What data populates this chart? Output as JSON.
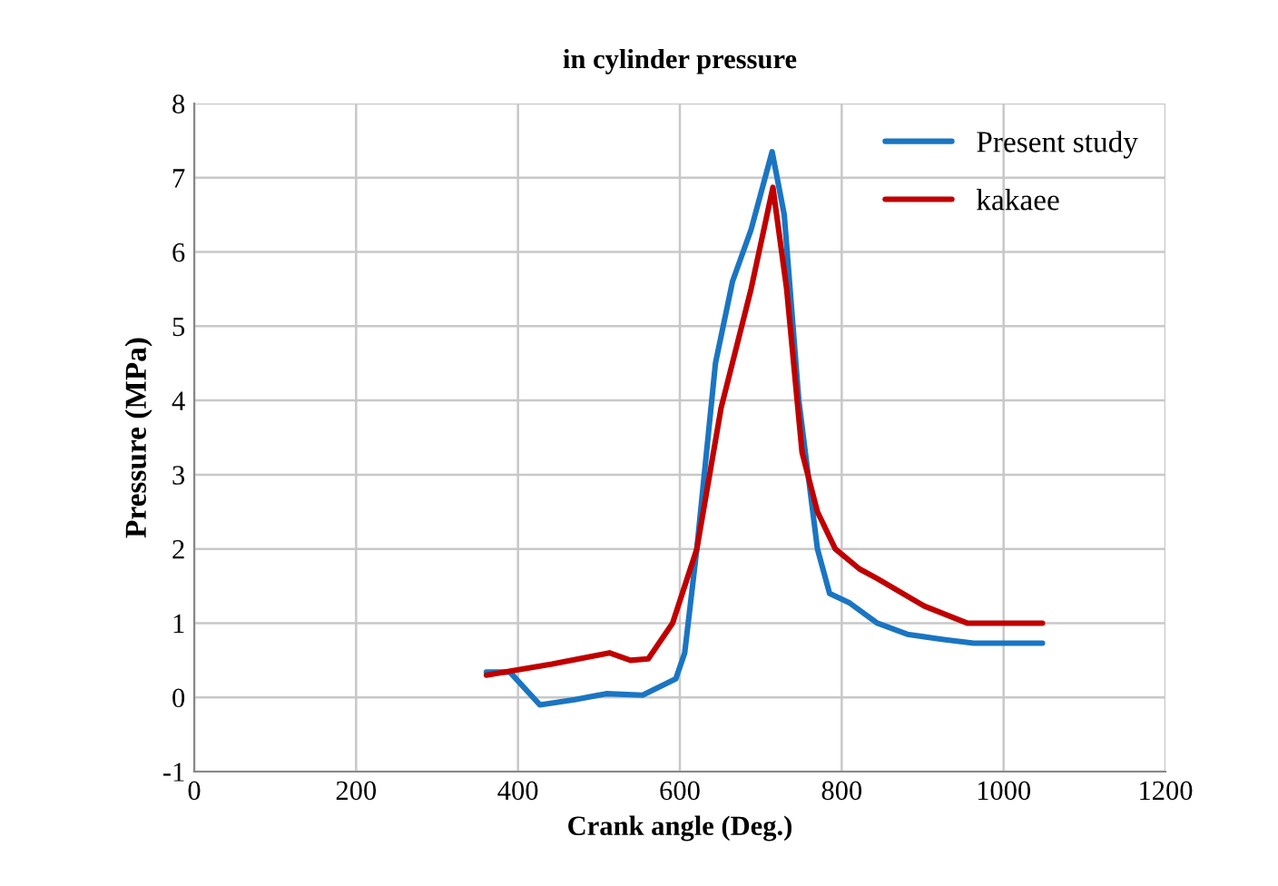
{
  "chart_data": {
    "type": "line",
    "title": "in cylinder pressure",
    "xlabel": "Crank angle (Deg.)",
    "ylabel": "Pressure (MPa)",
    "xlim": [
      0,
      1200
    ],
    "xticks": [
      0,
      200,
      400,
      600,
      800,
      1000,
      1200
    ],
    "ylim": [
      -1,
      8
    ],
    "yticks": [
      -1,
      0,
      1,
      2,
      3,
      4,
      5,
      6,
      7,
      8
    ],
    "grid": true,
    "legend": "top right",
    "marker": "none",
    "line_style": "solid",
    "series": [
      {
        "name": "Present study",
        "color": "#1a75c2",
        "x": [
          361,
          390,
          427,
          470,
          509,
          554,
          595,
          606,
          621,
          644,
          665,
          688,
          714,
          729,
          747,
          770,
          785,
          810,
          844,
          881,
          926,
          963,
          1048
        ],
        "values": [
          0.34,
          0.34,
          -0.1,
          -0.03,
          0.05,
          0.03,
          0.25,
          0.6,
          2.0,
          4.5,
          5.6,
          6.3,
          7.35,
          6.5,
          4.0,
          2.0,
          1.4,
          1.27,
          1.0,
          0.85,
          0.78,
          0.73,
          0.73
        ]
      },
      {
        "name": "kakaee",
        "color": "#c00000",
        "x": [
          361,
          442,
          513,
          539,
          561,
          591,
          621,
          651,
          688,
          715,
          732,
          751,
          770,
          792,
          822,
          844,
          902,
          955,
          1048
        ],
        "values": [
          0.3,
          0.45,
          0.6,
          0.5,
          0.52,
          1.0,
          2.0,
          3.9,
          5.5,
          6.87,
          5.5,
          3.3,
          2.5,
          2.0,
          1.73,
          1.6,
          1.23,
          1.0,
          1.0
        ]
      }
    ]
  }
}
